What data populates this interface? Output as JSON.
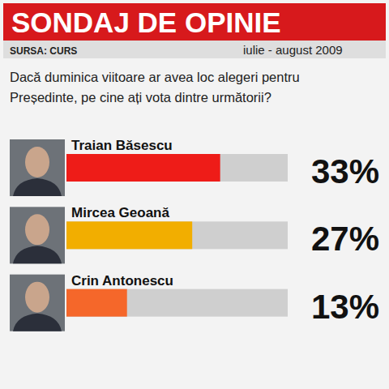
{
  "chart_data": {
    "type": "bar",
    "orientation": "horizontal",
    "title": "SONDAJ DE OPINIE",
    "annotations": [
      "SURSA: CURS",
      "iulie - august 2009"
    ],
    "subtitle": [
      "Dacă duminica viitoare ar avea loc alegeri pentru",
      "Președinte, pe cine ați vota dintre următorii?"
    ],
    "categories": [
      "Traian Băsescu",
      "Mircea Geoană",
      "Crin Antonescu"
    ],
    "values": [
      33,
      27,
      13
    ],
    "value_labels": [
      "33%",
      "27%",
      "13%"
    ],
    "colors": [
      "#ee1c18",
      "#f2ae00",
      "#f5672a"
    ],
    "xlim": [
      0,
      47.5
    ],
    "tick_labels": false,
    "data_labels": true
  }
}
